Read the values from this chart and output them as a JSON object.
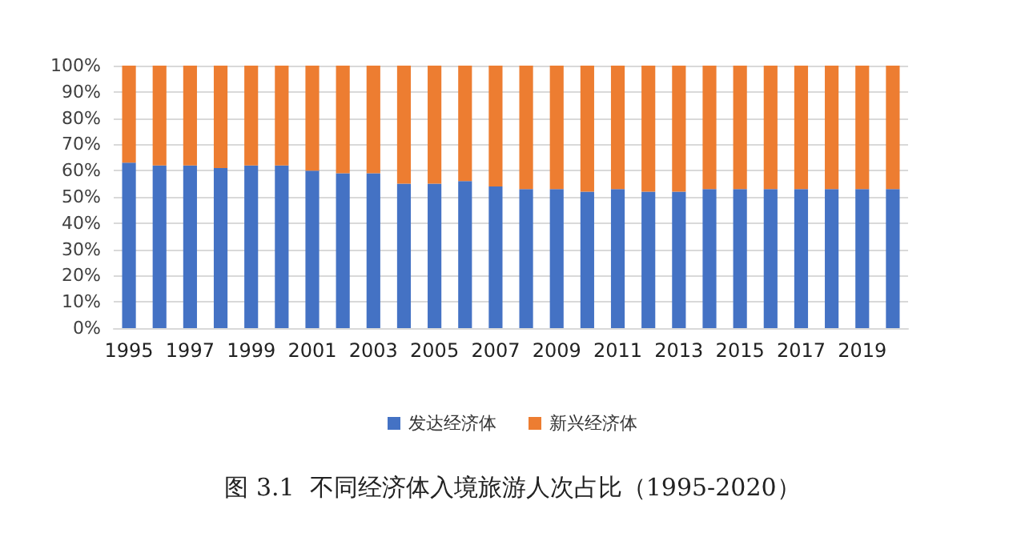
{
  "chart_data": {
    "type": "bar",
    "stacked": true,
    "title": "图 3.1  不同经济体入境旅游人次占比（1995-2020）",
    "categories": [
      "1995",
      null,
      "1997",
      null,
      "1999",
      null,
      "2001",
      null,
      "2003",
      null,
      "2005",
      null,
      "2007",
      null,
      "2009",
      null,
      "2011",
      null,
      "2013",
      null,
      "2015",
      null,
      "2017",
      null,
      "2019",
      null
    ],
    "series": [
      {
        "name": "发达经济体",
        "color": "#4472c4",
        "values": [
          63,
          62,
          62,
          61,
          62,
          62,
          60,
          59,
          59,
          55,
          55,
          56,
          54,
          53,
          53,
          52,
          53,
          52,
          52,
          53,
          53,
          53,
          53,
          53,
          53,
          53
        ]
      },
      {
        "name": "新兴经济体",
        "color": "#ed7d31",
        "values": [
          37,
          38,
          38,
          39,
          38,
          38,
          40,
          41,
          41,
          45,
          45,
          44,
          46,
          47,
          47,
          48,
          47,
          48,
          48,
          47,
          47,
          47,
          47,
          47,
          47,
          47
        ]
      }
    ],
    "ylim": [
      0,
      100
    ],
    "yticks": [
      {
        "value": 0,
        "label": "0%"
      },
      {
        "value": 10,
        "label": "10%"
      },
      {
        "value": 20,
        "label": "20%"
      },
      {
        "value": 30,
        "label": "30%"
      },
      {
        "value": 40,
        "label": "40%"
      },
      {
        "value": 50,
        "label": "50%"
      },
      {
        "value": 60,
        "label": "60%"
      },
      {
        "value": 70,
        "label": "70%"
      },
      {
        "value": 80,
        "label": "80%"
      },
      {
        "value": 90,
        "label": "90%"
      },
      {
        "value": 100,
        "label": "100%"
      }
    ],
    "grid": "y",
    "legend": "bottom"
  }
}
